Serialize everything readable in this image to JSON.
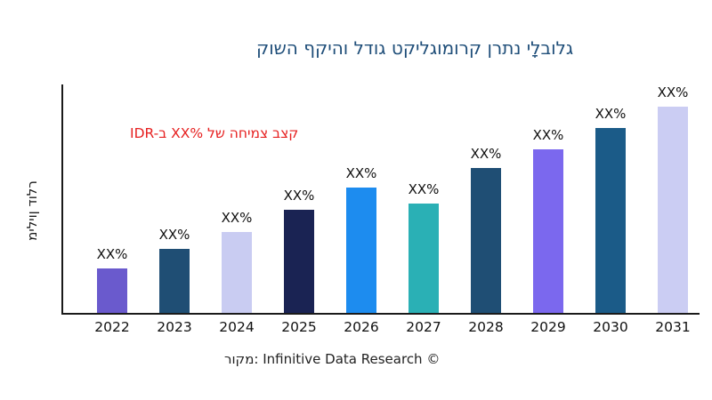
{
  "title": {
    "text": "קושה ףקיהו לדוג טקילגומורק ןרתנ ילָבולג",
    "color": "#1f4e79"
  },
  "annotation": {
    "text": "IDR-ב XX% לש החימצ בצק",
    "color": "#e62020"
  },
  "y_axis_label": "מיליון דולר",
  "source": "רוקמ: Infinitive Data Research ©",
  "axis_color": "#1a1a1a",
  "chart_data": {
    "type": "bar",
    "categories": [
      "2022",
      "2023",
      "2024",
      "2025",
      "2026",
      "2027",
      "2028",
      "2029",
      "2030",
      "2031"
    ],
    "value_labels": [
      "XX%",
      "XX%",
      "XX%",
      "XX%",
      "XX%",
      "XX%",
      "XX%",
      "XX%",
      "XX%",
      "XX%"
    ],
    "relative_heights": [
      21.6,
      31.0,
      39.2,
      50.0,
      60.8,
      53.0,
      70.3,
      79.3,
      89.7,
      100.0
    ],
    "bar_colors": [
      "#6a5acd",
      "#1f4e74",
      "#c9ccf2",
      "#1a2353",
      "#1d8cef",
      "#2ab0b5",
      "#1f4e74",
      "#7b68ee",
      "#1b5b88",
      "#cbcdf3"
    ],
    "title": "קושה ףקיהו לדוג טקילגומורק ןרתנ ילָבולג",
    "xlabel": "",
    "ylabel": "מיליון דולר",
    "grid": false,
    "legend": false,
    "note": "values shown only as XX% placeholders; relative_heights estimated from bar pixels, max bar = 100"
  }
}
